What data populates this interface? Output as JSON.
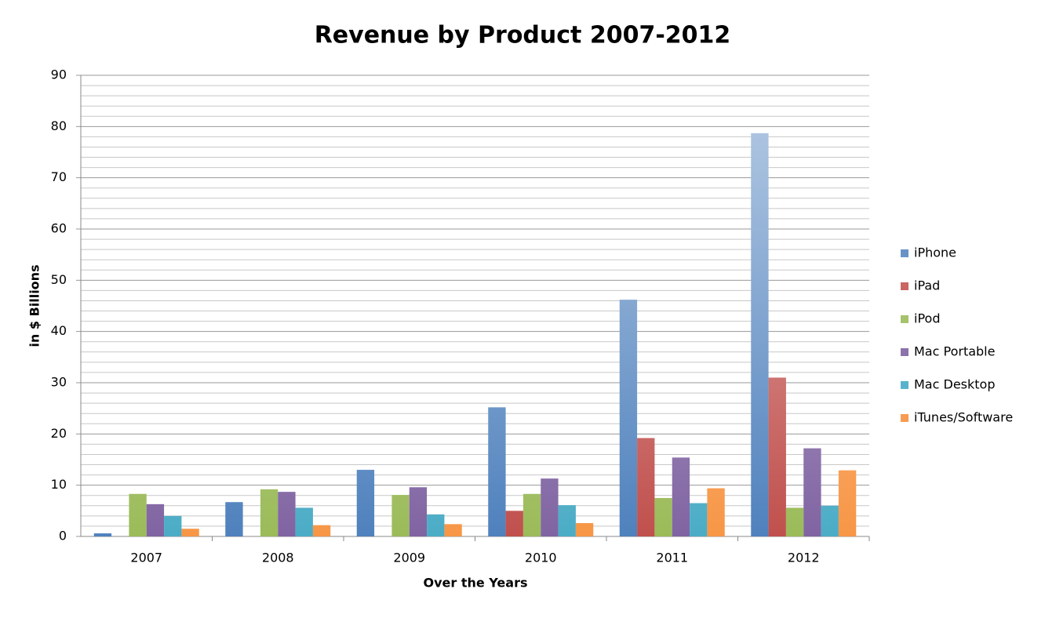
{
  "chart_data": {
    "type": "bar",
    "title": "Revenue by Product 2007-2012",
    "x_label": "Over the Years",
    "y_label": "in $ Billions",
    "categories": [
      "2007",
      "2008",
      "2009",
      "2010",
      "2011",
      "2012"
    ],
    "series": [
      {
        "name": "iPhone",
        "color": "#4f81bd",
        "values": [
          0.6,
          6.7,
          13.0,
          25.2,
          46.2,
          78.7
        ]
      },
      {
        "name": "iPad",
        "color": "#c0504d",
        "values": [
          0,
          0,
          0,
          5.0,
          19.2,
          31.0
        ]
      },
      {
        "name": "iPod",
        "color": "#9bbb59",
        "values": [
          8.3,
          9.2,
          8.1,
          8.3,
          7.5,
          5.6
        ]
      },
      {
        "name": "Mac Portable",
        "color": "#8064a2",
        "values": [
          6.3,
          8.7,
          9.6,
          11.3,
          15.4,
          17.2
        ]
      },
      {
        "name": "Mac Desktop",
        "color": "#4bacc6",
        "values": [
          4.0,
          5.6,
          4.3,
          6.1,
          6.5,
          6.0
        ]
      },
      {
        "name": "iTunes/Software",
        "color": "#f79646",
        "values": [
          1.5,
          2.2,
          2.4,
          2.6,
          9.4,
          12.9
        ]
      }
    ],
    "ylim": [
      0,
      90
    ],
    "yticks": [
      0,
      10,
      20,
      30,
      40,
      50,
      60,
      70,
      80,
      90
    ],
    "grid": true,
    "legend": "right"
  }
}
